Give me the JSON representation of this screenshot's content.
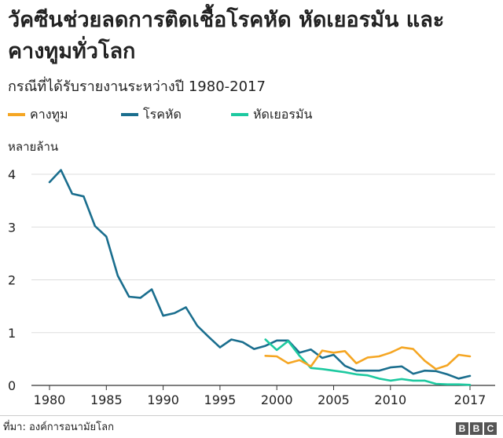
{
  "title": "วัคซีนช่วยลดการติดเชื้อโรคหัด หัดเยอรมัน และคางทูมทั่วโลก",
  "subtitle": "กรณีที่ได้รับรายงานระหว่างปี 1980-2017",
  "unit_label": "หลายล้าน",
  "source": "ที่มา: องค์การอนามัยโลก",
  "logo": [
    "B",
    "B",
    "C"
  ],
  "chart_data": {
    "type": "line",
    "title": "วัคซีนช่วยลดการติดเชื้อโรคหัด หัดเยอรมัน และคางทูมทั่วโลก",
    "subtitle": "กรณีที่ได้รับรายงานระหว่างปี 1980-2017",
    "ylabel": "หลายล้าน",
    "xlabel": "",
    "xlim": [
      1980,
      2017
    ],
    "ylim": [
      0,
      4
    ],
    "xticks": [
      "1980",
      "1985",
      "1990",
      "1995",
      "2000",
      "2005",
      "2010",
      "2017"
    ],
    "xtick_values": [
      1980,
      1985,
      1990,
      1995,
      2000,
      2005,
      2010,
      2017
    ],
    "yticks": [
      "0",
      "1",
      "2",
      "3",
      "4"
    ],
    "ytick_values": [
      0,
      1,
      2,
      3,
      4
    ],
    "grid": "horizontal",
    "legend": "top-left",
    "series": [
      {
        "name": "คางทูม",
        "color": "#f5a623",
        "x": [
          1999,
          2000,
          2001,
          2002,
          2003,
          2004,
          2005,
          2006,
          2007,
          2008,
          2009,
          2010,
          2011,
          2012,
          2013,
          2014,
          2015,
          2016,
          2017
        ],
        "values": [
          0.56,
          0.55,
          0.42,
          0.48,
          0.36,
          0.66,
          0.62,
          0.65,
          0.42,
          0.53,
          0.55,
          0.62,
          0.72,
          0.69,
          0.47,
          0.31,
          0.38,
          0.58,
          0.55
        ]
      },
      {
        "name": "โรคหัด",
        "color": "#1a6e8e",
        "x": [
          1980,
          1981,
          1982,
          1983,
          1984,
          1985,
          1986,
          1987,
          1988,
          1989,
          1990,
          1991,
          1992,
          1993,
          1994,
          1995,
          1996,
          1997,
          1998,
          1999,
          2000,
          2001,
          2002,
          2003,
          2004,
          2005,
          2006,
          2007,
          2008,
          2009,
          2010,
          2011,
          2012,
          2013,
          2014,
          2015,
          2016,
          2017
        ],
        "values": [
          3.85,
          4.08,
          3.63,
          3.58,
          3.02,
          2.82,
          2.08,
          1.68,
          1.66,
          1.82,
          1.32,
          1.37,
          1.48,
          1.13,
          0.92,
          0.72,
          0.87,
          0.82,
          0.69,
          0.75,
          0.85,
          0.85,
          0.62,
          0.68,
          0.52,
          0.58,
          0.37,
          0.28,
          0.28,
          0.28,
          0.34,
          0.36,
          0.22,
          0.28,
          0.27,
          0.21,
          0.13,
          0.18
        ]
      },
      {
        "name": "หัดเยอรมัน",
        "color": "#1dc9a0",
        "x": [
          1999,
          2000,
          2001,
          2002,
          2003,
          2004,
          2005,
          2006,
          2007,
          2008,
          2009,
          2010,
          2011,
          2012,
          2013,
          2014,
          2015,
          2016,
          2017
        ],
        "values": [
          0.87,
          0.67,
          0.84,
          0.56,
          0.33,
          0.31,
          0.28,
          0.25,
          0.21,
          0.19,
          0.13,
          0.09,
          0.12,
          0.09,
          0.09,
          0.03,
          0.02,
          0.02,
          0.01
        ]
      }
    ]
  }
}
